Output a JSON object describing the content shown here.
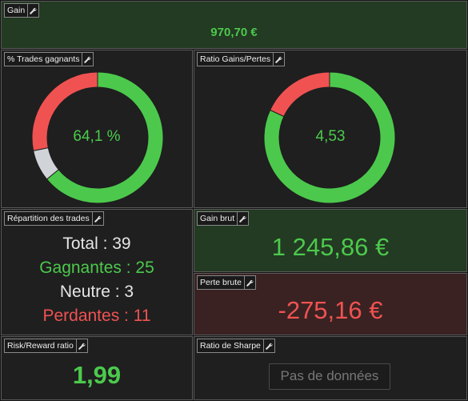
{
  "colors": {
    "green": "#4cc94c",
    "red": "#f05252",
    "grey": "#d0d4d8",
    "text": "#e6e6e6"
  },
  "gain": {
    "title": "Gain",
    "value": "970,70 €"
  },
  "win_rate": {
    "title": "% Trades gagnants",
    "value": "64,1 %",
    "chart_data": {
      "type": "pie",
      "values": [
        25,
        3,
        11
      ],
      "colors": [
        "#4cc94c",
        "#d0d4d8",
        "#f05252"
      ]
    }
  },
  "ratio": {
    "title": "Ratio Gains/Pertes",
    "value": "4,53",
    "chart_data": {
      "type": "pie",
      "values": [
        1245.86,
        275.16
      ],
      "colors": [
        "#4cc94c",
        "#f05252"
      ]
    }
  },
  "repartition": {
    "title": "Répartition des trades",
    "total": "Total : 39",
    "gagnantes": "Gagnantes : 25",
    "neutre": "Neutre : 3",
    "perdantes": "Perdantes : 11"
  },
  "gain_brut": {
    "title": "Gain brut",
    "value": "1 245,86 €"
  },
  "perte_brute": {
    "title": "Perte brute",
    "value": "-275,16 €"
  },
  "risk_reward": {
    "title": "Risk/Reward ratio",
    "value": "1,99"
  },
  "sharpe": {
    "title": "Ratio de Sharpe",
    "value": "Pas de données"
  }
}
